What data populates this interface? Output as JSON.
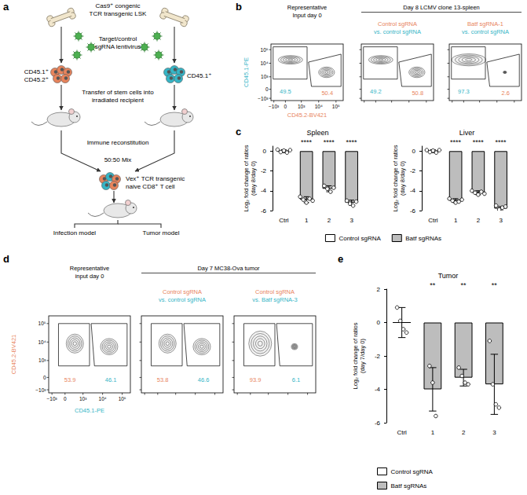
{
  "panel_labels": [
    "a",
    "b",
    "c",
    "d",
    "e"
  ],
  "diagram": {
    "source": [
      "Cas9⁺ congenic",
      "TCR transgenic LSK"
    ],
    "lentivirus": [
      "Target/control",
      "sgRNA lentivirus"
    ],
    "left_cells": [
      "CD45.1⁺",
      "CD45.2⁺"
    ],
    "right_cells": [
      "CD45.1⁺"
    ],
    "transfer": [
      "Transfer of stem cells into",
      "irradiated recipient"
    ],
    "reconstitution": "Immune reconstitution",
    "mix": "50:50 Mix",
    "naive_cells": [
      "Vex⁺ TCR transgenic",
      "naive CD8⁺ T cell"
    ],
    "models": [
      "Infection model",
      "Tumor model"
    ]
  },
  "flow_plots": [
    {
      "header_left": [
        "Representative",
        "Input day 0"
      ],
      "header_right": "Day 8 LCMV clone 13-spleen",
      "ylabel": {
        "text": "CD45.1-PE",
        "color": "#35b5c6"
      },
      "xlabel": {
        "text": "CD45.2-BV421",
        "color": "#e8845c"
      },
      "ticks": [
        "−10³",
        "0",
        "10³",
        "10⁴",
        "10⁵"
      ],
      "plots": [
        {
          "gates": [
            {
              "percent": 49.5,
              "color": "#35b5c6"
            },
            {
              "percent": 50.4,
              "color": "#e8845c"
            }
          ]
        },
        {
          "title_lines": [
            {
              "text": "Control sgRNA",
              "color": "#e8845c"
            },
            {
              "text": "vs. control sgRNA",
              "color": "#35b5c6"
            }
          ],
          "gates": [
            {
              "percent": 49.2,
              "color": "#35b5c6"
            },
            {
              "percent": 50.8,
              "color": "#e8845c"
            }
          ]
        },
        {
          "title_lines": [
            {
              "text": "Batf sgRNA-1",
              "color": "#e8845c"
            },
            {
              "text": "vs. control sgRNA",
              "color": "#35b5c6"
            }
          ],
          "gates": [
            {
              "percent": 97.3,
              "color": "#35b5c6"
            },
            {
              "percent": 2.6,
              "color": "#e8845c"
            }
          ]
        }
      ]
    },
    {
      "header_left": [
        "Representative",
        "input day 0"
      ],
      "header_right": "Day 7 MC38-Ova tumor",
      "ylabel": {
        "text": "CD45.2-BV421",
        "color": "#e8845c"
      },
      "xlabel": {
        "text": "CD45.1-PE",
        "color": "#35b5c6"
      },
      "ticks": [
        "−10³",
        "0",
        "10³",
        "10⁴",
        "10⁵"
      ],
      "plots": [
        {
          "gates": [
            {
              "percent": 53.9,
              "color": "#e8845c"
            },
            {
              "percent": 46.1,
              "color": "#35b5c6"
            }
          ]
        },
        {
          "title_lines": [
            {
              "text": "Control sgRNA",
              "color": "#e8845c"
            },
            {
              "text": "vs. control sgRNA",
              "color": "#35b5c6"
            }
          ],
          "gates": [
            {
              "percent": 53.8,
              "color": "#e8845c"
            },
            {
              "percent": 46.6,
              "color": "#35b5c6"
            }
          ]
        },
        {
          "title_lines": [
            {
              "text": "Control sgRNA",
              "color": "#e8845c"
            },
            {
              "text": "vs. Batf sgRNA-3",
              "color": "#35b5c6"
            }
          ],
          "gates": [
            {
              "percent": 93.9,
              "color": "#e8845c"
            },
            {
              "percent": 6.1,
              "color": "#35b5c6"
            }
          ]
        }
      ]
    }
  ],
  "chart_data": [
    {
      "type": "bar",
      "title": "Spleen",
      "ylabel": [
        "Log₂ fold change of ratios",
        "(day 8/day 0)"
      ],
      "categories": [
        "Ctrl",
        "1",
        "2",
        "3"
      ],
      "series": [
        {
          "name": "Control sgRNA",
          "color": "#ffffff",
          "values": [
            0,
            null,
            null,
            null
          ],
          "errors": [
            0.15,
            null,
            null,
            null
          ],
          "points": [
            [
              0.15,
              -0.1,
              0.05,
              -0.15,
              0.1
            ],
            null,
            null,
            null
          ]
        },
        {
          "name": "Batf sgRNAs",
          "color": "#bdbdbd",
          "values": [
            null,
            -4.9,
            -3.8,
            -5.2
          ],
          "errors": [
            null,
            0.3,
            0.3,
            0.25
          ],
          "points": [
            null,
            [
              -4.6,
              -4.9,
              -5.2,
              -4.8,
              -5.0
            ],
            [
              -3.5,
              -3.8,
              -4.1,
              -3.7
            ],
            [
              -5.0,
              -5.3,
              -5.5,
              -5.1
            ]
          ]
        }
      ],
      "significance": [
        null,
        "****",
        "****",
        "****"
      ],
      "ylim": [
        -6,
        0.5
      ],
      "yticks": [
        -6,
        -4,
        -2,
        0
      ],
      "legend": "bottom"
    },
    {
      "type": "bar",
      "title": "Liver",
      "ylabel": [
        "Log₂ fold change of ratios",
        "(day 8/day 0)"
      ],
      "categories": [
        "Ctrl",
        "1",
        "2",
        "3"
      ],
      "series": [
        {
          "name": "Control sgRNA",
          "color": "#ffffff",
          "values": [
            0,
            null,
            null,
            null
          ],
          "errors": [
            0.15,
            null,
            null,
            null
          ],
          "points": [
            [
              0.1,
              -0.1,
              0.05,
              -0.15,
              0.1
            ],
            null,
            null,
            null
          ]
        },
        {
          "name": "Batf sgRNAs",
          "color": "#bdbdbd",
          "values": [
            null,
            -5.0,
            -4.2,
            -5.8
          ],
          "errors": [
            null,
            0.2,
            0.2,
            0.2
          ],
          "points": [
            null,
            [
              -4.8,
              -5.0,
              -5.2,
              -5.1,
              -4.9
            ],
            [
              -4.0,
              -4.2,
              -4.4,
              -4.1,
              -4.3
            ],
            [
              -5.5,
              -5.9,
              -5.7,
              -5.6
            ]
          ]
        }
      ],
      "significance": [
        null,
        "****",
        "****",
        "****"
      ],
      "ylim": [
        -6,
        0.5
      ],
      "yticks": [
        -6,
        -4,
        -2,
        0
      ]
    },
    {
      "type": "bar",
      "title": "Tumor",
      "ylabel": [
        "Log₂ fold change of ratios",
        "(day 7/day 0)"
      ],
      "categories": [
        "Ctrl",
        "1",
        "2",
        "3"
      ],
      "series": [
        {
          "name": "Control sgRNA",
          "color": "#ffffff",
          "values": [
            0,
            null,
            null,
            null
          ],
          "errors": [
            0.9,
            null,
            null,
            null
          ],
          "points": [
            [
              0.9,
              0.1,
              -0.4,
              -0.6
            ],
            null,
            null,
            null
          ]
        },
        {
          "name": "Batf sgRNAs",
          "color": "#bdbdbd",
          "values": [
            null,
            -4.0,
            -3.3,
            -3.7
          ],
          "errors": [
            null,
            1.3,
            0.5,
            1.8
          ],
          "points": [
            null,
            [
              -2.6,
              -3.6,
              -5.6
            ],
            [
              -2.7,
              -3.2,
              -3.6,
              -3.7
            ],
            [
              -1.1,
              -3.7,
              -4.9,
              -5.1
            ]
          ]
        }
      ],
      "significance": [
        null,
        "**",
        "**",
        "**"
      ],
      "ylim": [
        -6,
        2
      ],
      "yticks": [
        -6,
        -4,
        -2,
        0,
        2
      ],
      "legend": "bottom"
    }
  ]
}
